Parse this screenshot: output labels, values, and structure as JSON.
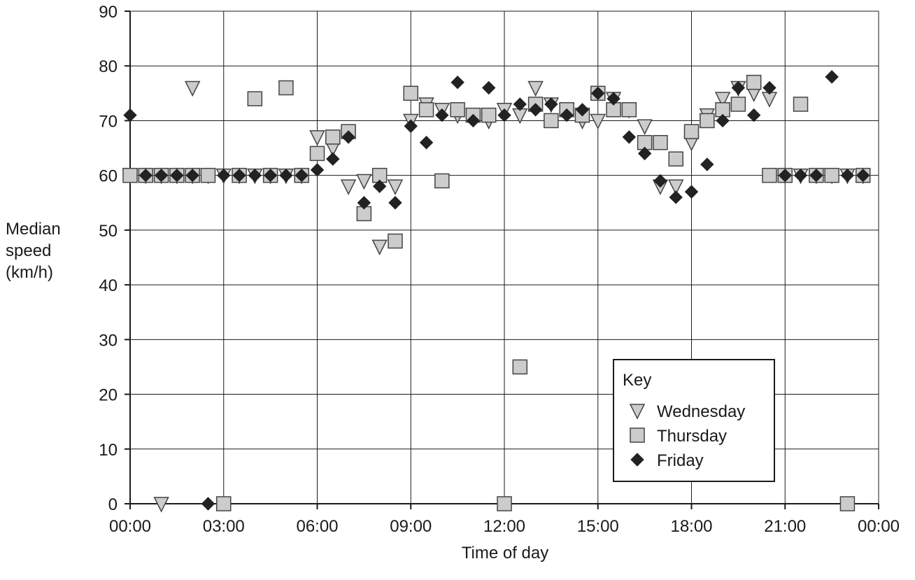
{
  "chart_data": {
    "type": "scatter",
    "xlabel": "Time of day",
    "ylabel": [
      "Median",
      "speed",
      "(km/h)"
    ],
    "xlim": [
      0,
      24
    ],
    "ylim": [
      0,
      90
    ],
    "x_ticks": [
      "00:00",
      "03:00",
      "06:00",
      "09:00",
      "12:00",
      "15:00",
      "18:00",
      "21:00",
      "00:00"
    ],
    "y_ticks": [
      0,
      10,
      20,
      30,
      40,
      50,
      60,
      70,
      80,
      90
    ],
    "grid": true,
    "legend": {
      "title": "Key",
      "position": "bottom-right"
    },
    "series": [
      {
        "name": "Wednesday",
        "marker": "triangle-down",
        "color": "#cccccc",
        "points": [
          [
            0.0,
            60
          ],
          [
            0.5,
            60
          ],
          [
            1.0,
            0
          ],
          [
            1.0,
            60
          ],
          [
            1.5,
            60
          ],
          [
            2.0,
            76
          ],
          [
            2.0,
            60
          ],
          [
            2.5,
            60
          ],
          [
            3.0,
            60
          ],
          [
            3.5,
            60
          ],
          [
            4.0,
            60
          ],
          [
            4.5,
            60
          ],
          [
            5.0,
            60
          ],
          [
            5.5,
            60
          ],
          [
            6.0,
            67
          ],
          [
            6.5,
            65
          ],
          [
            7.0,
            58
          ],
          [
            7.5,
            59
          ],
          [
            8.0,
            47
          ],
          [
            8.5,
            58
          ],
          [
            9.0,
            70
          ],
          [
            9.5,
            73
          ],
          [
            10.0,
            72
          ],
          [
            10.5,
            71
          ],
          [
            11.0,
            71
          ],
          [
            11.5,
            70
          ],
          [
            12.0,
            72
          ],
          [
            12.5,
            71
          ],
          [
            13.0,
            76
          ],
          [
            13.5,
            73
          ],
          [
            14.0,
            72
          ],
          [
            14.5,
            70
          ],
          [
            15.0,
            70
          ],
          [
            15.5,
            74
          ],
          [
            16.0,
            72
          ],
          [
            16.5,
            69
          ],
          [
            17.0,
            58
          ],
          [
            17.5,
            58
          ],
          [
            18.0,
            66
          ],
          [
            18.5,
            71
          ],
          [
            19.0,
            74
          ],
          [
            19.5,
            76
          ],
          [
            20.0,
            75
          ],
          [
            20.5,
            74
          ],
          [
            21.0,
            60
          ],
          [
            21.5,
            60
          ],
          [
            22.0,
            60
          ],
          [
            22.5,
            60
          ],
          [
            23.0,
            60
          ],
          [
            23.5,
            60
          ]
        ]
      },
      {
        "name": "Thursday",
        "marker": "square",
        "color": "#cccccc",
        "points": [
          [
            0.0,
            60
          ],
          [
            0.5,
            60
          ],
          [
            1.0,
            60
          ],
          [
            1.5,
            60
          ],
          [
            2.0,
            60
          ],
          [
            2.5,
            60
          ],
          [
            3.0,
            0
          ],
          [
            3.5,
            60
          ],
          [
            4.0,
            74
          ],
          [
            4.5,
            60
          ],
          [
            5.0,
            76
          ],
          [
            5.5,
            60
          ],
          [
            6.0,
            64
          ],
          [
            6.5,
            67
          ],
          [
            7.0,
            68
          ],
          [
            7.5,
            53
          ],
          [
            8.0,
            60
          ],
          [
            8.5,
            48
          ],
          [
            9.0,
            75
          ],
          [
            9.5,
            72
          ],
          [
            10.0,
            59
          ],
          [
            10.5,
            72
          ],
          [
            11.0,
            71
          ],
          [
            11.5,
            71
          ],
          [
            12.0,
            0
          ],
          [
            12.5,
            25
          ],
          [
            13.0,
            73
          ],
          [
            13.5,
            70
          ],
          [
            14.0,
            72
          ],
          [
            14.5,
            71
          ],
          [
            15.0,
            75
          ],
          [
            15.5,
            72
          ],
          [
            16.0,
            72
          ],
          [
            16.5,
            66
          ],
          [
            17.0,
            66
          ],
          [
            17.5,
            63
          ],
          [
            18.0,
            68
          ],
          [
            18.5,
            70
          ],
          [
            19.0,
            72
          ],
          [
            19.5,
            73
          ],
          [
            20.0,
            77
          ],
          [
            20.5,
            60
          ],
          [
            21.0,
            60
          ],
          [
            21.5,
            73
          ],
          [
            22.0,
            60
          ],
          [
            22.5,
            60
          ],
          [
            23.0,
            0
          ],
          [
            23.5,
            60
          ]
        ]
      },
      {
        "name": "Friday",
        "marker": "diamond",
        "color": "#222222",
        "points": [
          [
            0.0,
            71
          ],
          [
            0.5,
            60
          ],
          [
            1.0,
            60
          ],
          [
            1.5,
            60
          ],
          [
            2.0,
            60
          ],
          [
            2.5,
            0
          ],
          [
            3.0,
            60
          ],
          [
            3.5,
            60
          ],
          [
            4.0,
            60
          ],
          [
            4.5,
            60
          ],
          [
            5.0,
            60
          ],
          [
            5.5,
            60
          ],
          [
            6.0,
            61
          ],
          [
            6.5,
            63
          ],
          [
            7.0,
            67
          ],
          [
            7.5,
            55
          ],
          [
            8.0,
            58
          ],
          [
            8.5,
            55
          ],
          [
            9.0,
            69
          ],
          [
            9.5,
            66
          ],
          [
            10.0,
            71
          ],
          [
            10.5,
            77
          ],
          [
            11.0,
            70
          ],
          [
            11.5,
            76
          ],
          [
            12.0,
            71
          ],
          [
            12.5,
            73
          ],
          [
            13.0,
            72
          ],
          [
            13.5,
            73
          ],
          [
            14.0,
            71
          ],
          [
            14.5,
            72
          ],
          [
            15.0,
            75
          ],
          [
            15.5,
            74
          ],
          [
            16.0,
            67
          ],
          [
            16.5,
            64
          ],
          [
            17.0,
            59
          ],
          [
            17.5,
            56
          ],
          [
            18.0,
            57
          ],
          [
            18.5,
            62
          ],
          [
            19.0,
            70
          ],
          [
            19.5,
            76
          ],
          [
            20.0,
            71
          ],
          [
            20.5,
            76
          ],
          [
            21.0,
            60
          ],
          [
            21.5,
            60
          ],
          [
            22.0,
            60
          ],
          [
            22.5,
            78
          ],
          [
            23.0,
            60
          ],
          [
            23.5,
            60
          ]
        ]
      }
    ]
  }
}
